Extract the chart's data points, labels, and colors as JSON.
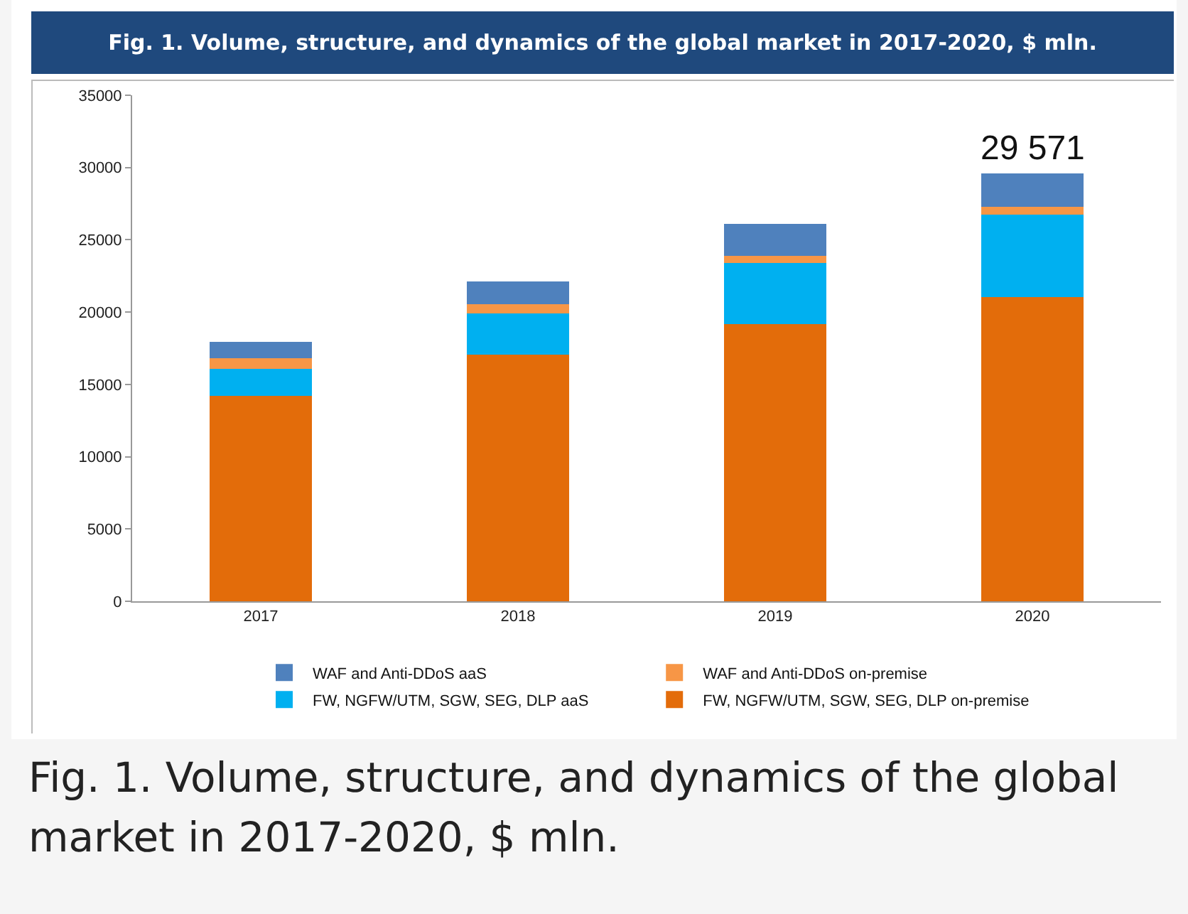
{
  "chart_data": {
    "type": "bar",
    "title": "Fig. 1. Volume, structure, and dynamics of the global market in 2017-2020, $ mln.",
    "categories": [
      "2017",
      "2018",
      "2019",
      "2020"
    ],
    "stacked": true,
    "series": [
      {
        "name": "FW, NGFW/UTM, SGW, SEG, DLP on-premise",
        "color": "#e36c0a",
        "values": [
          14200,
          17050,
          19180,
          21040
        ]
      },
      {
        "name": "FW, NGFW/UTM, SGW, SEG, DLP aaS",
        "color": "#00b0f0",
        "values": [
          1860,
          2860,
          4220,
          5690
        ]
      },
      {
        "name": "WAF and Anti-DDoS on-premise",
        "color": "#f79646",
        "values": [
          770,
          660,
          500,
          530
        ]
      },
      {
        "name": "WAF and Anti-DDoS aaS",
        "color": "#4f81bd",
        "values": [
          1130,
          1530,
          2190,
          2311
        ]
      }
    ],
    "totals": [
      null,
      null,
      null,
      "29 571"
    ],
    "ylim": [
      0,
      35000
    ],
    "yticks": [
      0,
      5000,
      10000,
      15000,
      20000,
      25000,
      30000,
      35000
    ],
    "grid": false,
    "legend": "bottom",
    "annotations": [
      "Fig. 1. Volume, structure, and dynamics of the global market in 2017-2020, $ mln."
    ]
  }
}
